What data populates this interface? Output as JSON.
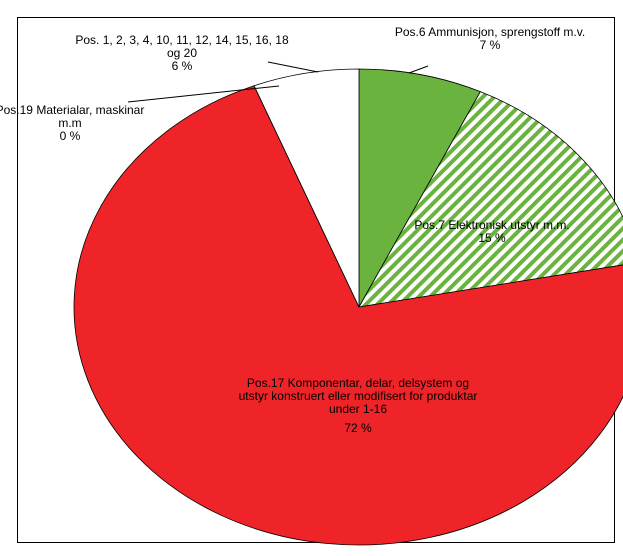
{
  "chart_data": {
    "type": "pie",
    "categories": [
      "Pos.6 Ammunisjon, sprengstoff m.v.",
      "Pos.7 Elektronisk utstyr m.m.",
      "Pos.17 Komponentar, delar, delsystem og utstyr konstruert eller modifisert for produktar under 1-16",
      "Pos.19 Materialar, maskinar m.m",
      "Pos. 1, 2, 3, 4, 10, 11, 12, 14, 15, 16, 18 og 20"
    ],
    "values": [
      7,
      15,
      72,
      0,
      6
    ],
    "value_labels": [
      "7 %",
      "15 %",
      "72 %",
      "0 %",
      "6 %"
    ],
    "colors": [
      "#6ab33f",
      "hatch",
      "#ee2428",
      "#ffffff",
      "#ffffff"
    ]
  }
}
